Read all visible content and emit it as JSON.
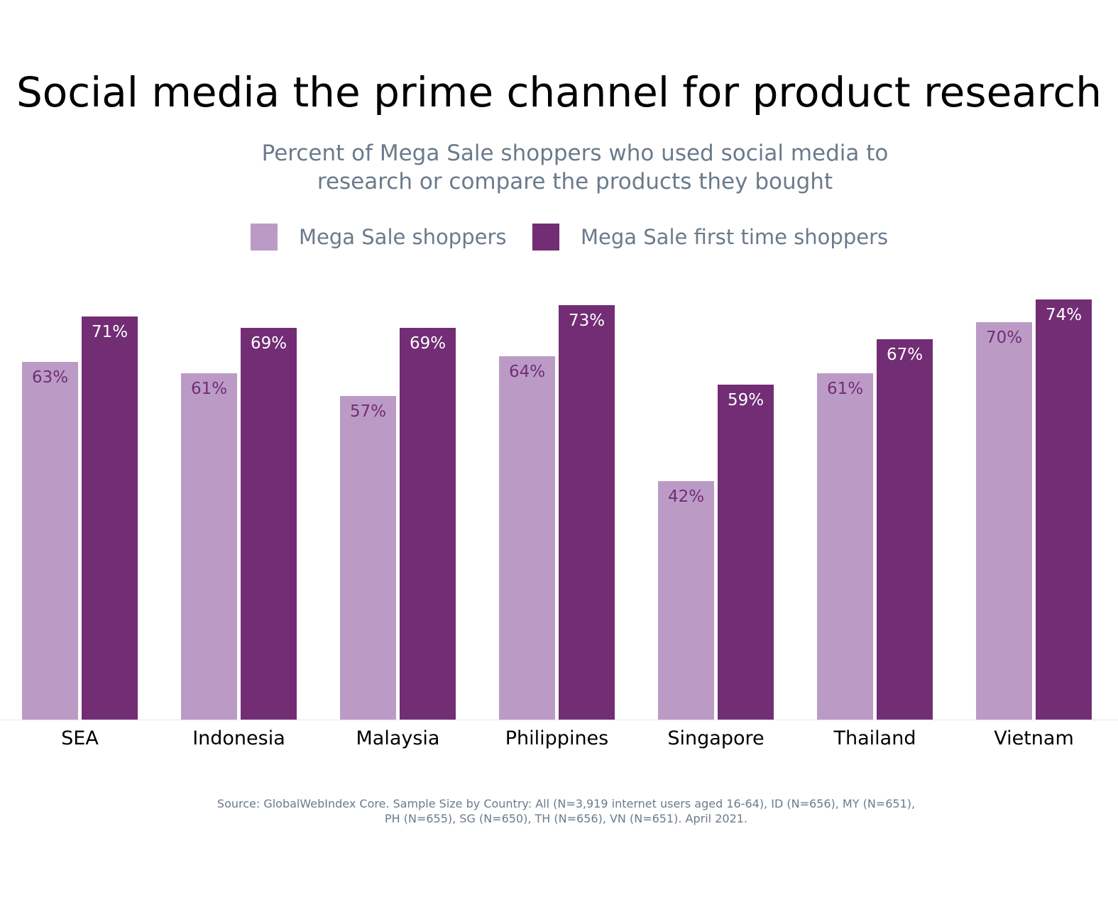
{
  "chart_data": {
    "type": "bar",
    "title": "Social media the prime channel for product research",
    "subtitle": "Percent of Mega Sale shoppers who used social media to research or compare the products they bought",
    "categories": [
      "SEA",
      "Indonesia",
      "Malaysia",
      "Philippines",
      "Singapore",
      "Thailand",
      "Vietnam"
    ],
    "series": [
      {
        "name": "Mega Sale shoppers",
        "values": [
          63,
          61,
          57,
          64,
          42,
          61,
          70
        ],
        "color": "#bb9bc6",
        "label_color": "#722d75"
      },
      {
        "name": "Mega Sale first time shoppers",
        "values": [
          71,
          69,
          69,
          73,
          59,
          67,
          74
        ],
        "color": "#722d75",
        "label_color": "#ffffff"
      }
    ],
    "value_suffix": "%",
    "ylim": [
      0,
      100
    ],
    "grid": false,
    "legend_position": "top-center",
    "source": "Source: GlobalWebIndex Core. Sample Size by Country: All (N=3,919 internet users aged 16-64), ID (N=656), MY (N=651), PH (N=655), SG (N=650), TH (N=656), VN (N=651). April 2021."
  }
}
